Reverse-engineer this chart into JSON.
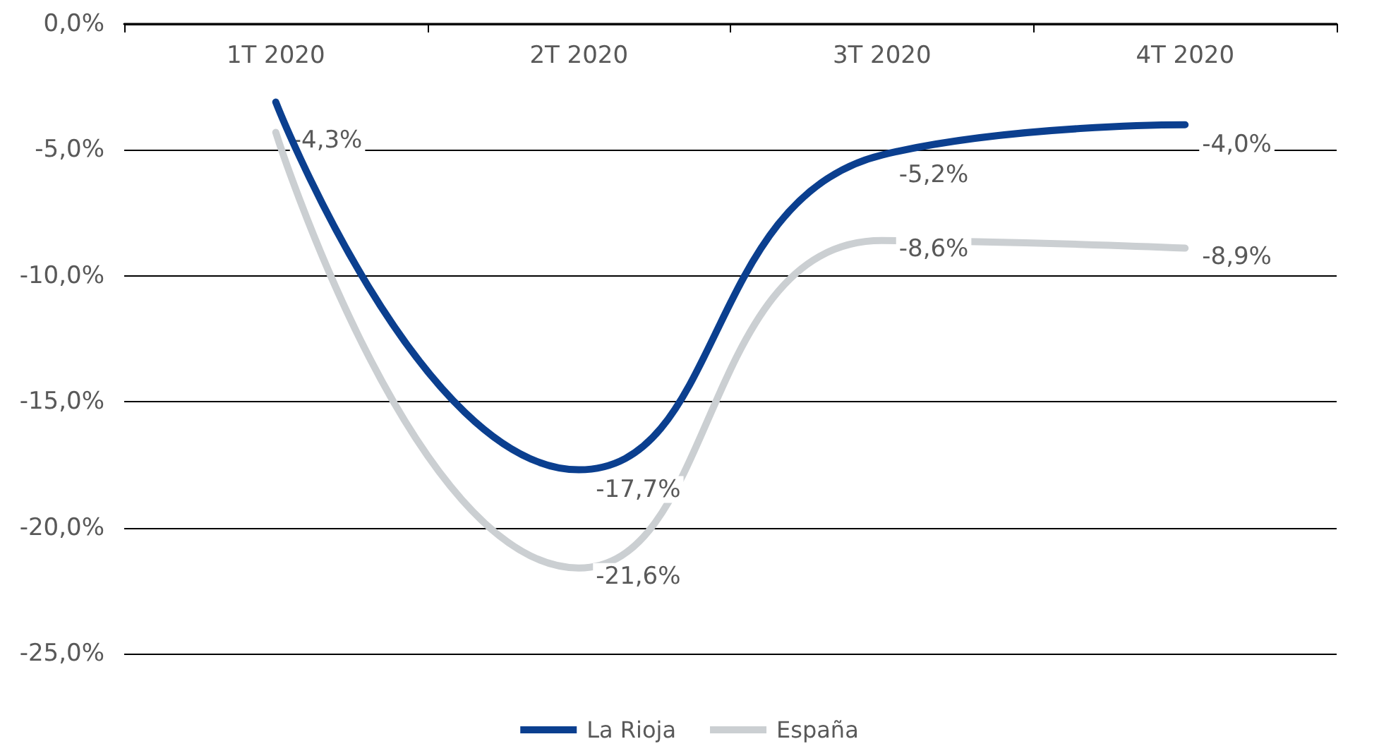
{
  "chart_data": {
    "type": "line",
    "categories": [
      "1T 2020",
      "2T 2020",
      "3T 2020",
      "4T 2020"
    ],
    "series": [
      {
        "name": "La Rioja",
        "color": "#0b3f8f",
        "values": [
          -3.1,
          -17.7,
          -5.2,
          -4.0
        ],
        "value_labels": [
          null,
          "-17,7%",
          "-5,2%",
          "-4,0%"
        ]
      },
      {
        "name": "España",
        "color": "#cbcfd2",
        "values": [
          -4.3,
          -21.6,
          -8.6,
          -8.9
        ],
        "value_labels": [
          "-4,3%",
          "-21,6%",
          "-8,6%",
          "-8,9%"
        ]
      }
    ],
    "ylim": [
      -25,
      0
    ],
    "yticks": [
      {
        "value": -25,
        "label": "-25,0%"
      },
      {
        "value": -20,
        "label": "-20,0%"
      },
      {
        "value": -15,
        "label": "-15,0%"
      },
      {
        "value": -10,
        "label": "-10,0%"
      },
      {
        "value": -5,
        "label": "-5,0%"
      },
      {
        "value": 0,
        "label": "0,0%"
      }
    ],
    "grid": "y",
    "legend": "bottom",
    "marker": "none",
    "line_style": "solid"
  }
}
